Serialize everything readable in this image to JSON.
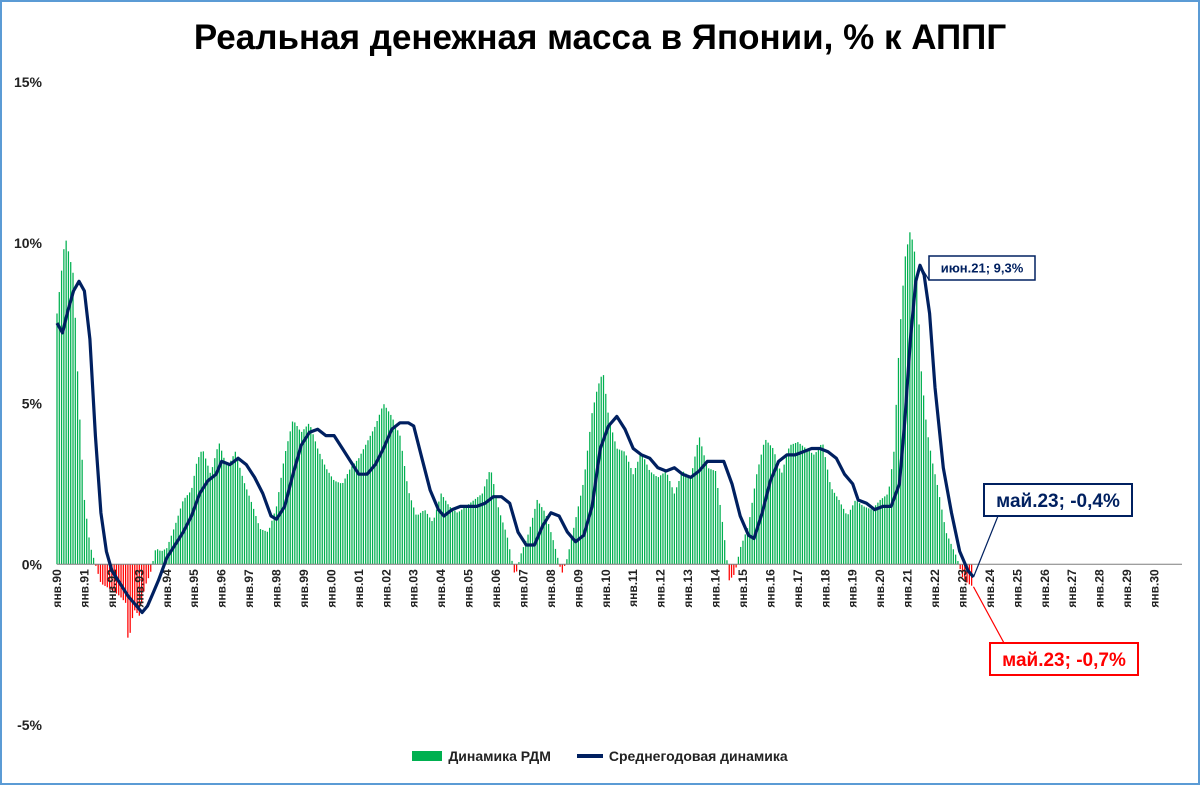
{
  "chart_data": {
    "type": "bar",
    "title": "Реальная денежная масса в Японии, % к АППГ",
    "ylim": [
      -5,
      15
    ],
    "y_ticks": [
      "-5%",
      "0%",
      "5%",
      "10%",
      "15%"
    ],
    "y_tick_values": [
      -5,
      0,
      5,
      10,
      15
    ],
    "x_range": [
      1990,
      2031
    ],
    "x_ticks": [
      "янв.90",
      "янв.91",
      "янв.92",
      "янв.93",
      "янв.94",
      "янв.95",
      "янв.96",
      "янв.97",
      "янв.98",
      "янв.99",
      "янв.00",
      "янв.01",
      "янв.02",
      "янв.03",
      "янв.04",
      "янв.05",
      "янв.06",
      "янв.07",
      "янв.08",
      "янв.09",
      "янв.10",
      "янв.11",
      "янв.12",
      "янв.13",
      "янв.14",
      "янв.15",
      "янв.16",
      "янв.17",
      "янв.18",
      "янв.19",
      "янв.20",
      "янв.21",
      "янв.22",
      "янв.23",
      "янв.24",
      "янв.25",
      "янв.26",
      "янв.27",
      "янв.28",
      "янв.29",
      "янв.30"
    ],
    "colors": {
      "positive": "#00b050",
      "negative": "#ff0000",
      "line": "#002060"
    },
    "series": [
      {
        "name": "Динамика РДМ",
        "type": "bar",
        "points": [
          [
            1990.0,
            7.8
          ],
          [
            1990.3,
            10.2
          ],
          [
            1990.6,
            9.0
          ],
          [
            1990.8,
            5.0
          ],
          [
            1991.0,
            2.0
          ],
          [
            1991.2,
            0.6
          ],
          [
            1991.4,
            0.0
          ],
          [
            1991.6,
            -0.6
          ],
          [
            1991.8,
            -0.7
          ],
          [
            1992.0,
            -0.8
          ],
          [
            1992.3,
            -1.0
          ],
          [
            1992.5,
            -1.2
          ],
          [
            1992.6,
            -2.5
          ],
          [
            1992.8,
            -1.4
          ],
          [
            1993.0,
            -1.6
          ],
          [
            1993.2,
            -0.7
          ],
          [
            1993.4,
            -0.3
          ],
          [
            1993.6,
            0.5
          ],
          [
            1993.8,
            0.4
          ],
          [
            1994.0,
            0.5
          ],
          [
            1994.3,
            1.2
          ],
          [
            1994.6,
            2.0
          ],
          [
            1994.9,
            2.3
          ],
          [
            1995.1,
            3.2
          ],
          [
            1995.3,
            3.6
          ],
          [
            1995.6,
            2.8
          ],
          [
            1995.9,
            3.8
          ],
          [
            1996.2,
            3.0
          ],
          [
            1996.5,
            3.5
          ],
          [
            1996.8,
            2.6
          ],
          [
            1997.1,
            1.9
          ],
          [
            1997.4,
            1.1
          ],
          [
            1997.7,
            1.0
          ],
          [
            1998.0,
            1.8
          ],
          [
            1998.3,
            3.4
          ],
          [
            1998.6,
            4.5
          ],
          [
            1998.9,
            4.1
          ],
          [
            1999.2,
            4.4
          ],
          [
            1999.5,
            3.6
          ],
          [
            1999.8,
            3.0
          ],
          [
            2000.1,
            2.6
          ],
          [
            2000.4,
            2.5
          ],
          [
            2000.7,
            3.0
          ],
          [
            2001.0,
            3.3
          ],
          [
            2001.3,
            3.8
          ],
          [
            2001.6,
            4.3
          ],
          [
            2001.9,
            5.0
          ],
          [
            2002.2,
            4.6
          ],
          [
            2002.5,
            4.0
          ],
          [
            2002.8,
            2.3
          ],
          [
            2003.1,
            1.5
          ],
          [
            2003.4,
            1.7
          ],
          [
            2003.7,
            1.3
          ],
          [
            2004.0,
            2.2
          ],
          [
            2004.3,
            1.8
          ],
          [
            2004.6,
            1.6
          ],
          [
            2004.9,
            1.8
          ],
          [
            2005.2,
            2.0
          ],
          [
            2005.5,
            2.2
          ],
          [
            2005.8,
            3.0
          ],
          [
            2006.1,
            1.7
          ],
          [
            2006.4,
            0.9
          ],
          [
            2006.7,
            -0.4
          ],
          [
            2006.9,
            0.3
          ],
          [
            2007.2,
            1.0
          ],
          [
            2007.5,
            2.0
          ],
          [
            2007.8,
            1.6
          ],
          [
            2008.1,
            0.7
          ],
          [
            2008.4,
            -0.3
          ],
          [
            2008.6,
            0.2
          ],
          [
            2008.9,
            1.4
          ],
          [
            2009.2,
            2.6
          ],
          [
            2009.5,
            4.7
          ],
          [
            2009.7,
            5.5
          ],
          [
            2009.9,
            6.0
          ],
          [
            2010.1,
            4.6
          ],
          [
            2010.4,
            3.6
          ],
          [
            2010.7,
            3.5
          ],
          [
            2011.0,
            2.8
          ],
          [
            2011.3,
            3.5
          ],
          [
            2011.6,
            2.9
          ],
          [
            2011.9,
            2.7
          ],
          [
            2012.2,
            2.9
          ],
          [
            2012.5,
            2.2
          ],
          [
            2012.8,
            2.9
          ],
          [
            2013.1,
            2.7
          ],
          [
            2013.4,
            4.0
          ],
          [
            2013.7,
            3.0
          ],
          [
            2014.0,
            2.9
          ],
          [
            2014.3,
            1.0
          ],
          [
            2014.5,
            -0.5
          ],
          [
            2014.7,
            -0.3
          ],
          [
            2014.9,
            0.5
          ],
          [
            2015.2,
            1.2
          ],
          [
            2015.5,
            2.8
          ],
          [
            2015.8,
            3.9
          ],
          [
            2016.1,
            3.6
          ],
          [
            2016.4,
            2.8
          ],
          [
            2016.7,
            3.7
          ],
          [
            2017.0,
            3.8
          ],
          [
            2017.3,
            3.6
          ],
          [
            2017.6,
            3.4
          ],
          [
            2017.9,
            3.8
          ],
          [
            2018.2,
            2.4
          ],
          [
            2018.5,
            2.0
          ],
          [
            2018.8,
            1.5
          ],
          [
            2019.1,
            2.0
          ],
          [
            2019.4,
            1.8
          ],
          [
            2019.7,
            1.7
          ],
          [
            2020.0,
            2.0
          ],
          [
            2020.3,
            2.2
          ],
          [
            2020.5,
            3.5
          ],
          [
            2020.7,
            7.0
          ],
          [
            2020.9,
            9.5
          ],
          [
            2021.1,
            10.4
          ],
          [
            2021.3,
            9.5
          ],
          [
            2021.5,
            6.0
          ],
          [
            2021.7,
            4.2
          ],
          [
            2021.9,
            3.2
          ],
          [
            2022.1,
            2.4
          ],
          [
            2022.4,
            1.0
          ],
          [
            2022.6,
            0.6
          ],
          [
            2022.8,
            0.2
          ],
          [
            2023.0,
            -0.4
          ],
          [
            2023.2,
            -0.6
          ],
          [
            2023.4,
            -0.7
          ]
        ]
      },
      {
        "name": "Среднегодовая динамика",
        "type": "line",
        "points": [
          [
            1990.0,
            7.5
          ],
          [
            1990.2,
            7.2
          ],
          [
            1990.4,
            7.9
          ],
          [
            1990.6,
            8.5
          ],
          [
            1990.8,
            8.8
          ],
          [
            1991.0,
            8.5
          ],
          [
            1991.2,
            7.0
          ],
          [
            1991.4,
            4.0
          ],
          [
            1991.6,
            1.6
          ],
          [
            1991.8,
            0.4
          ],
          [
            1992.0,
            -0.2
          ],
          [
            1992.3,
            -0.6
          ],
          [
            1992.6,
            -1.0
          ],
          [
            1992.9,
            -1.3
          ],
          [
            1993.1,
            -1.5
          ],
          [
            1993.3,
            -1.3
          ],
          [
            1993.5,
            -0.9
          ],
          [
            1993.7,
            -0.5
          ],
          [
            1994.0,
            0.2
          ],
          [
            1994.3,
            0.6
          ],
          [
            1994.6,
            1.0
          ],
          [
            1994.9,
            1.5
          ],
          [
            1995.2,
            2.2
          ],
          [
            1995.5,
            2.6
          ],
          [
            1995.8,
            2.8
          ],
          [
            1996.0,
            3.2
          ],
          [
            1996.3,
            3.1
          ],
          [
            1996.6,
            3.3
          ],
          [
            1996.9,
            3.1
          ],
          [
            1997.2,
            2.7
          ],
          [
            1997.5,
            2.2
          ],
          [
            1997.8,
            1.5
          ],
          [
            1998.0,
            1.4
          ],
          [
            1998.3,
            1.8
          ],
          [
            1998.6,
            2.8
          ],
          [
            1998.9,
            3.7
          ],
          [
            1999.2,
            4.1
          ],
          [
            1999.5,
            4.2
          ],
          [
            1999.8,
            4.0
          ],
          [
            2000.1,
            4.0
          ],
          [
            2000.4,
            3.6
          ],
          [
            2000.7,
            3.2
          ],
          [
            2001.0,
            2.8
          ],
          [
            2001.3,
            2.8
          ],
          [
            2001.6,
            3.1
          ],
          [
            2001.9,
            3.6
          ],
          [
            2002.2,
            4.2
          ],
          [
            2002.5,
            4.4
          ],
          [
            2002.8,
            4.4
          ],
          [
            2003.0,
            4.3
          ],
          [
            2003.3,
            3.3
          ],
          [
            2003.6,
            2.3
          ],
          [
            2003.9,
            1.7
          ],
          [
            2004.1,
            1.5
          ],
          [
            2004.4,
            1.7
          ],
          [
            2004.7,
            1.8
          ],
          [
            2005.0,
            1.8
          ],
          [
            2005.3,
            1.8
          ],
          [
            2005.6,
            1.9
          ],
          [
            2005.9,
            2.1
          ],
          [
            2006.2,
            2.1
          ],
          [
            2006.5,
            1.9
          ],
          [
            2006.8,
            1.0
          ],
          [
            2007.1,
            0.6
          ],
          [
            2007.4,
            0.6
          ],
          [
            2007.7,
            1.2
          ],
          [
            2008.0,
            1.6
          ],
          [
            2008.3,
            1.5
          ],
          [
            2008.6,
            1.0
          ],
          [
            2008.9,
            0.7
          ],
          [
            2009.2,
            0.9
          ],
          [
            2009.5,
            1.8
          ],
          [
            2009.8,
            3.6
          ],
          [
            2010.1,
            4.3
          ],
          [
            2010.4,
            4.6
          ],
          [
            2010.7,
            4.2
          ],
          [
            2011.0,
            3.6
          ],
          [
            2011.3,
            3.4
          ],
          [
            2011.6,
            3.3
          ],
          [
            2011.9,
            3.0
          ],
          [
            2012.2,
            2.9
          ],
          [
            2012.5,
            3.0
          ],
          [
            2012.8,
            2.8
          ],
          [
            2013.1,
            2.7
          ],
          [
            2013.4,
            2.9
          ],
          [
            2013.7,
            3.2
          ],
          [
            2014.0,
            3.2
          ],
          [
            2014.3,
            3.2
          ],
          [
            2014.6,
            2.5
          ],
          [
            2014.9,
            1.5
          ],
          [
            2015.2,
            0.9
          ],
          [
            2015.4,
            0.8
          ],
          [
            2015.7,
            1.6
          ],
          [
            2016.0,
            2.6
          ],
          [
            2016.3,
            3.2
          ],
          [
            2016.6,
            3.4
          ],
          [
            2016.9,
            3.4
          ],
          [
            2017.2,
            3.5
          ],
          [
            2017.5,
            3.6
          ],
          [
            2017.8,
            3.6
          ],
          [
            2018.1,
            3.5
          ],
          [
            2018.4,
            3.3
          ],
          [
            2018.7,
            2.8
          ],
          [
            2019.0,
            2.5
          ],
          [
            2019.2,
            2.0
          ],
          [
            2019.5,
            1.9
          ],
          [
            2019.8,
            1.7
          ],
          [
            2020.1,
            1.8
          ],
          [
            2020.4,
            1.8
          ],
          [
            2020.7,
            2.5
          ],
          [
            2020.9,
            4.5
          ],
          [
            2021.1,
            7.0
          ],
          [
            2021.3,
            8.8
          ],
          [
            2021.45,
            9.3
          ],
          [
            2021.6,
            9.0
          ],
          [
            2021.8,
            7.8
          ],
          [
            2022.0,
            5.5
          ],
          [
            2022.3,
            3.0
          ],
          [
            2022.6,
            1.6
          ],
          [
            2022.9,
            0.4
          ],
          [
            2023.2,
            -0.2
          ],
          [
            2023.4,
            -0.4
          ]
        ]
      }
    ],
    "annotations": [
      {
        "label": "июн.21; 9,3%",
        "x": 2021.45,
        "y": 9.3,
        "color": "#002060"
      },
      {
        "label": "май.23; -0,4%",
        "x": 2023.4,
        "y": -0.4,
        "color": "#002060"
      },
      {
        "label": "май.23; -0,7%",
        "x": 2023.4,
        "y": -0.7,
        "color": "#ff0000"
      }
    ],
    "legend_position": "bottom",
    "grid": false
  }
}
